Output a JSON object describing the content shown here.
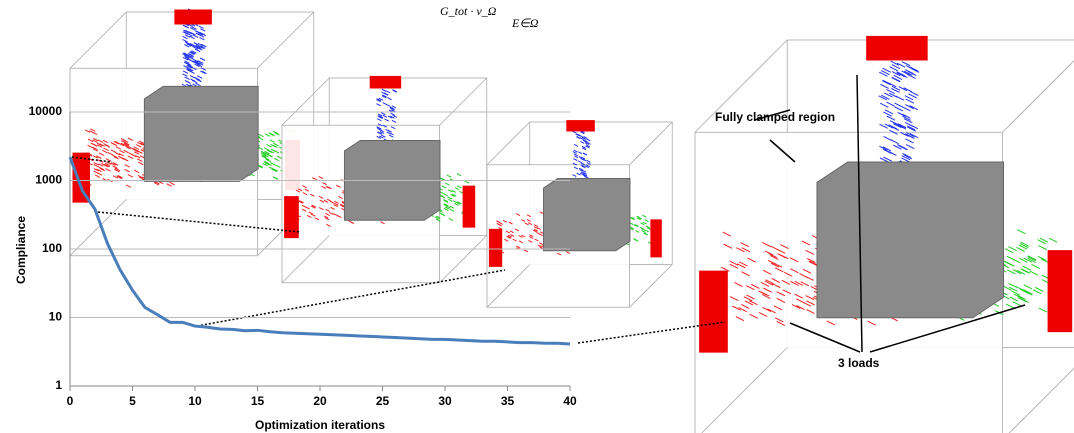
{
  "chart_data": {
    "type": "line",
    "annotations": {
      "formula_main": "G_tot · v_Ω",
      "formula_sub": "E∈Ω",
      "region": "Fully clamped region",
      "loads": "3 loads"
    },
    "x_label": "Optimization iterations",
    "y_label": "Compliance",
    "x": [
      0,
      1,
      2,
      3,
      4,
      5,
      6,
      7,
      8,
      9,
      10,
      11,
      12,
      13,
      14,
      15,
      16,
      17,
      18,
      19,
      20,
      21,
      22,
      23,
      24,
      25,
      26,
      27,
      28,
      29,
      30,
      31,
      32,
      33,
      34,
      35,
      36,
      37,
      38,
      39,
      40
    ],
    "series": [
      {
        "color": "#4a7ebb",
        "values": [
          2200,
          700,
          380,
          120,
          50,
          25,
          14,
          11,
          8.5,
          8.5,
          7.5,
          7.2,
          6.8,
          6.7,
          6.4,
          6.5,
          6.2,
          6.0,
          5.9,
          5.8,
          5.7,
          5.6,
          5.5,
          5.4,
          5.3,
          5.2,
          5.1,
          5.0,
          4.9,
          4.8,
          4.8,
          4.7,
          4.6,
          4.5,
          4.5,
          4.4,
          4.3,
          4.3,
          4.2,
          4.2,
          4.1
        ]
      }
    ],
    "xlim": [
      0,
      40
    ],
    "xticks": [
      0,
      5,
      10,
      15,
      20,
      25,
      30,
      35,
      40
    ],
    "ylim": [
      1,
      10000
    ],
    "yticks": [
      1,
      10,
      100,
      1000,
      10000
    ],
    "log_y": true,
    "grid": true
  }
}
